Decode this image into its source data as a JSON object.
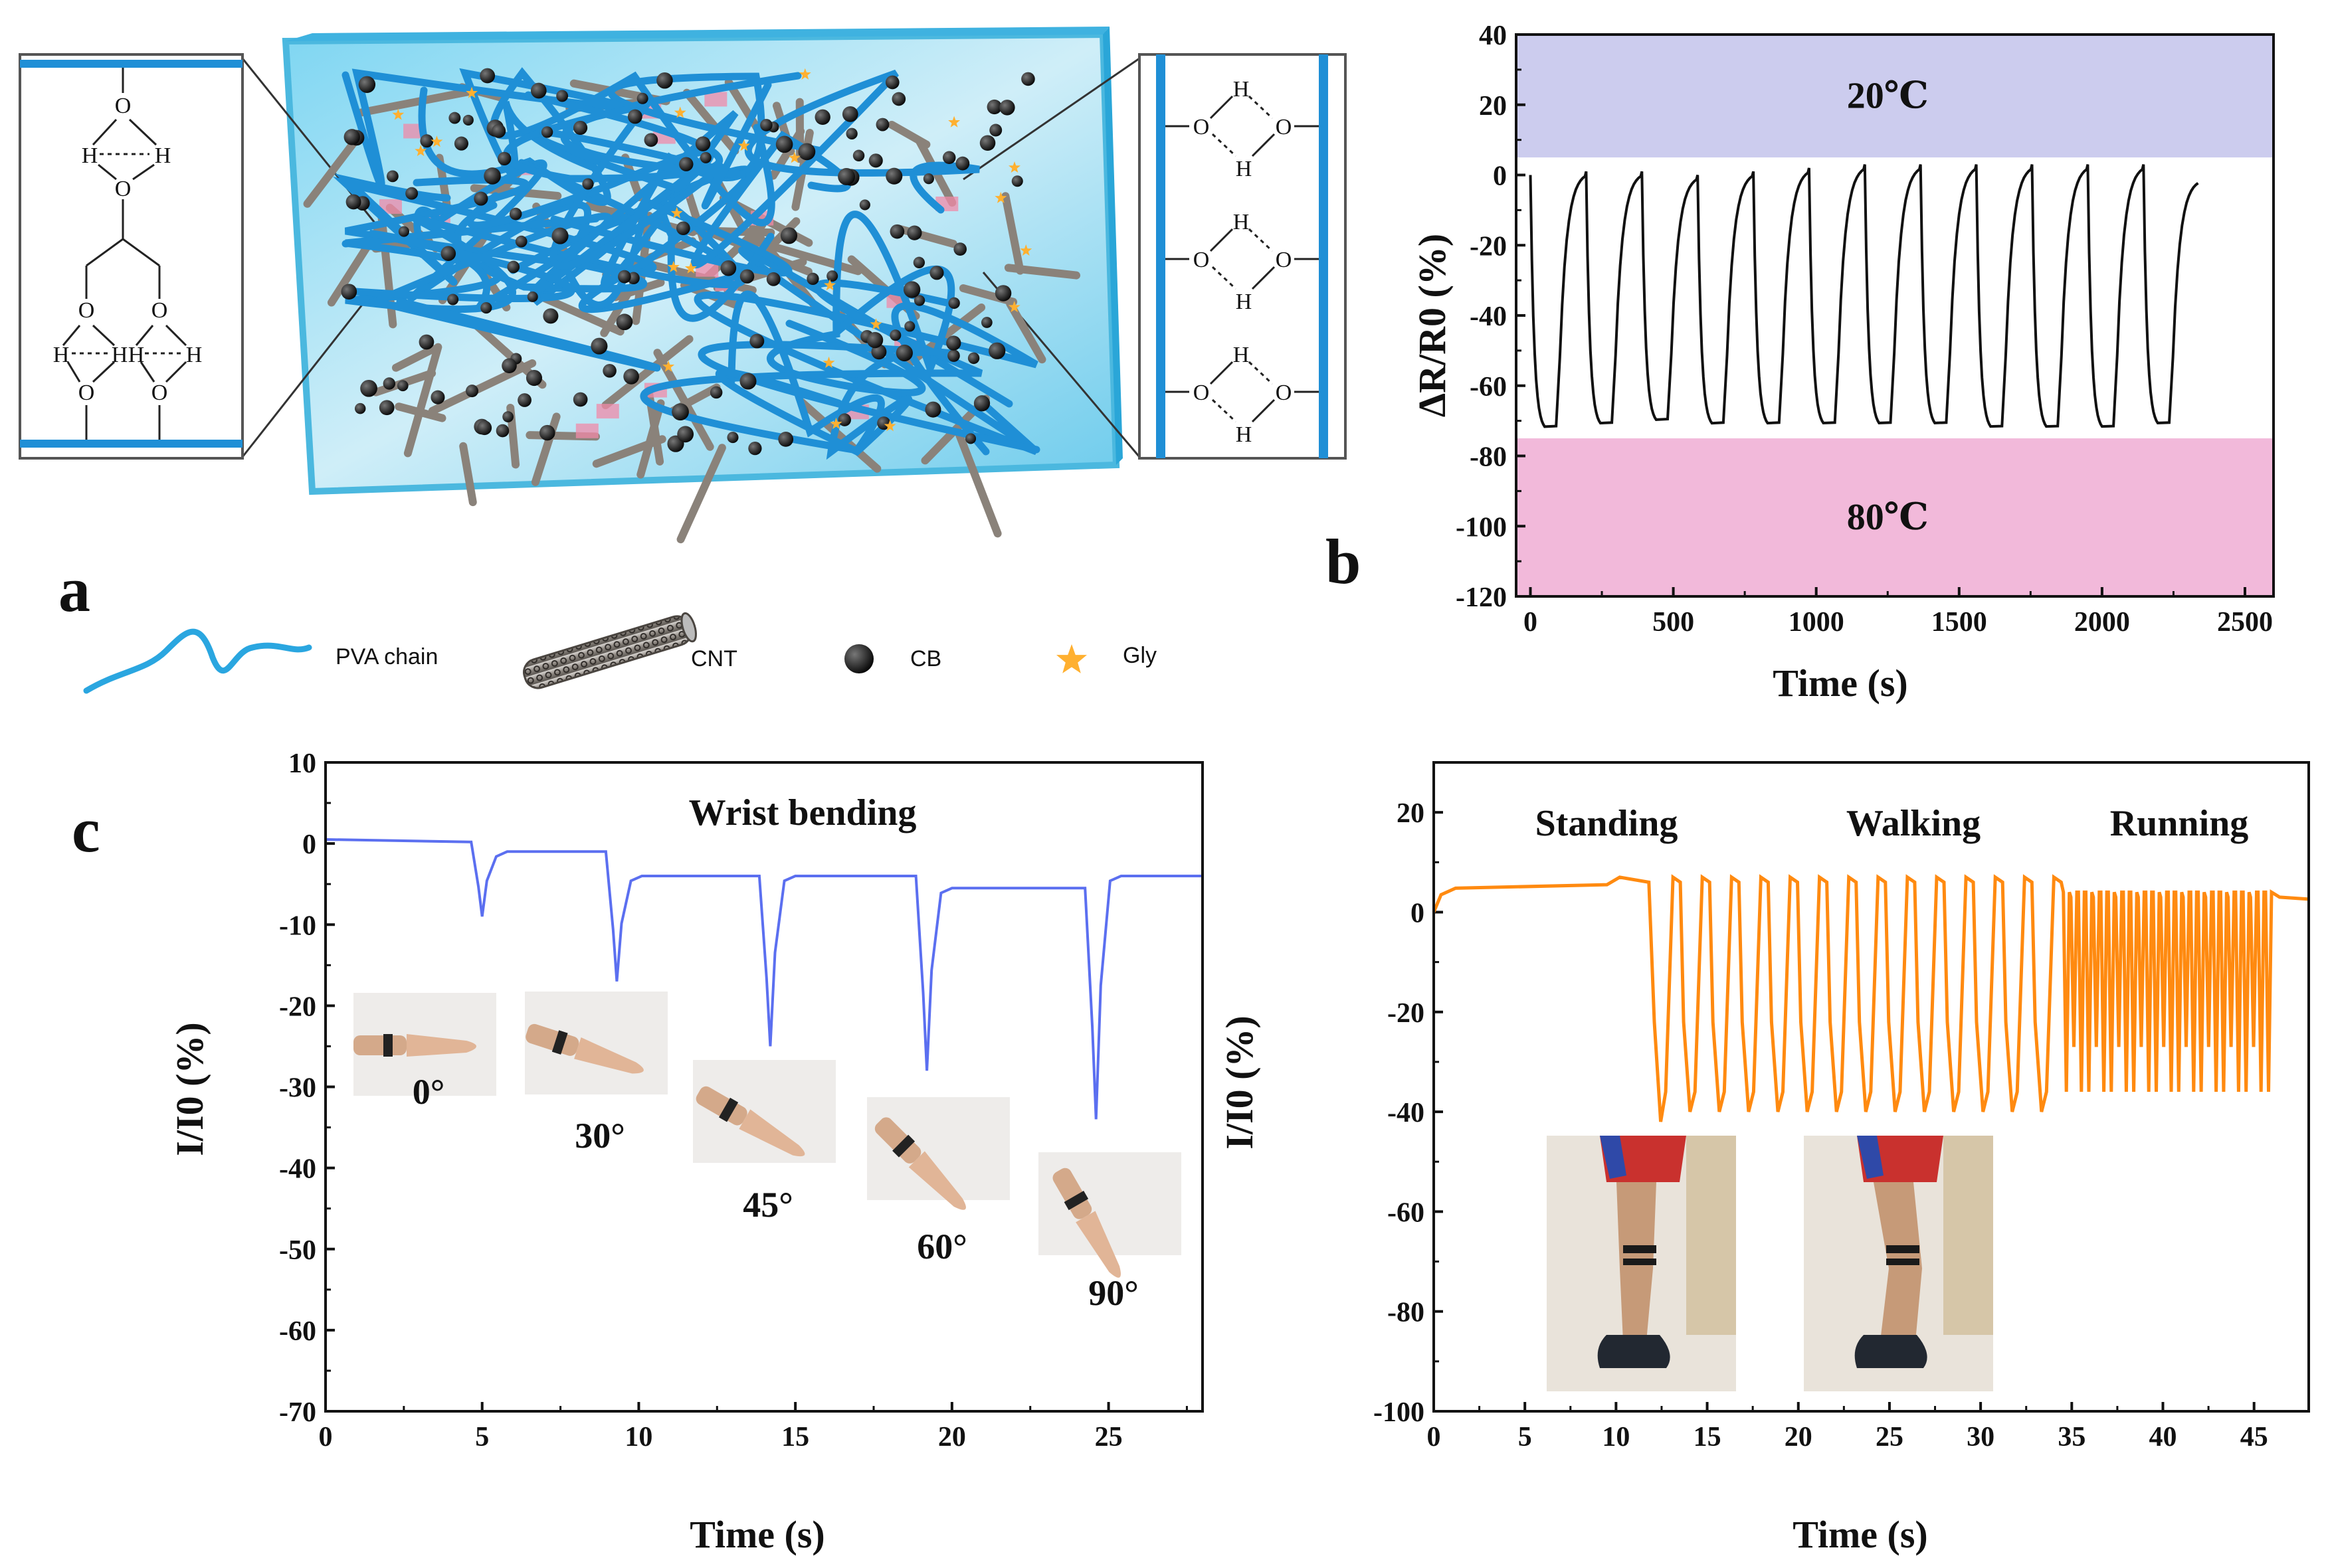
{
  "panels": {
    "a": "a",
    "b": "b",
    "c": "c"
  },
  "legend": [
    {
      "label": "PVA chain",
      "icon": "pva-chain-icon"
    },
    {
      "label": "CNT",
      "icon": "cnt-tube-icon"
    },
    {
      "label": "CB",
      "icon": "cb-sphere-icon"
    },
    {
      "label": "Gly",
      "icon": "gly-star-icon"
    }
  ],
  "chem": {
    "oxygen": "O",
    "hydrogen": "H"
  },
  "colors": {
    "blue_trace": "#5b6ff0",
    "orange_trace": "#ff8a10",
    "cold_band": "#ccccee",
    "hot_band": "#f2b9da",
    "hydrogel": "#5cc6e8"
  },
  "chart_data": [
    {
      "id": "b",
      "type": "line",
      "title": "",
      "xlabel": "Time (s)",
      "ylabel": "ΔR/R0 (%)",
      "xlim": [
        -50,
        2600
      ],
      "ylim": [
        -120,
        40
      ],
      "xticks": [
        0,
        500,
        1000,
        1500,
        2000,
        2500
      ],
      "yticks": [
        40,
        20,
        0,
        -20,
        -40,
        -60,
        -80,
        -100,
        -120
      ],
      "bands": [
        {
          "label": "20℃",
          "from": 5,
          "to": 40
        },
        {
          "label": "80℃",
          "from": -120,
          "to": -75
        }
      ],
      "cycle_period_s": 195,
      "peaks": [
        0,
        1,
        1,
        0,
        1,
        2,
        3,
        3,
        3,
        3,
        3,
        3,
        -1
      ],
      "troughs": [
        -73,
        -72,
        -71,
        -72,
        -72,
        -72,
        -72,
        -72,
        -73,
        -73,
        -73,
        -72
      ]
    },
    {
      "id": "c-left",
      "type": "line",
      "title": "Wrist bending",
      "xlabel": "Time (s)",
      "ylabel": "I/I0 (%)",
      "xlim": [
        0,
        28
      ],
      "ylim": [
        -70,
        10
      ],
      "xticks": [
        0,
        5,
        10,
        15,
        20,
        25
      ],
      "yticks": [
        10,
        0,
        -10,
        -20,
        -30,
        -40,
        -50,
        -60,
        -70
      ],
      "dips": [
        {
          "t": 5,
          "depth": -9,
          "baseline_after": -1,
          "angle": "0°"
        },
        {
          "t": 9.3,
          "depth": -17,
          "baseline_after": -4,
          "angle": "30°"
        },
        {
          "t": 14.2,
          "depth": -25,
          "baseline_after": -4,
          "angle": "45°"
        },
        {
          "t": 19.2,
          "depth": -28,
          "baseline_after": -5.5,
          "angle": "60°"
        },
        {
          "t": 24.6,
          "depth": -34,
          "baseline_after": -4,
          "angle": "90°"
        }
      ]
    },
    {
      "id": "c-right",
      "type": "line",
      "title": "",
      "xlabel": "Time (s)",
      "ylabel": "I/I0 (%)",
      "xlim": [
        0,
        48
      ],
      "ylim": [
        -100,
        30
      ],
      "xticks": [
        0,
        5,
        10,
        15,
        20,
        25,
        30,
        35,
        40,
        45
      ],
      "yticks": [
        20,
        0,
        -20,
        -40,
        -60,
        -80,
        -100
      ],
      "phases": [
        {
          "label": "Standing",
          "from": 0,
          "to": 12,
          "level": 6
        },
        {
          "label": "Walking",
          "from": 12,
          "to": 34.5,
          "high": 7,
          "low": -40,
          "cycles": 14
        },
        {
          "label": "Running",
          "from": 34.5,
          "to": 46,
          "high": 4,
          "low": -36,
          "cycles": 28
        }
      ]
    }
  ]
}
